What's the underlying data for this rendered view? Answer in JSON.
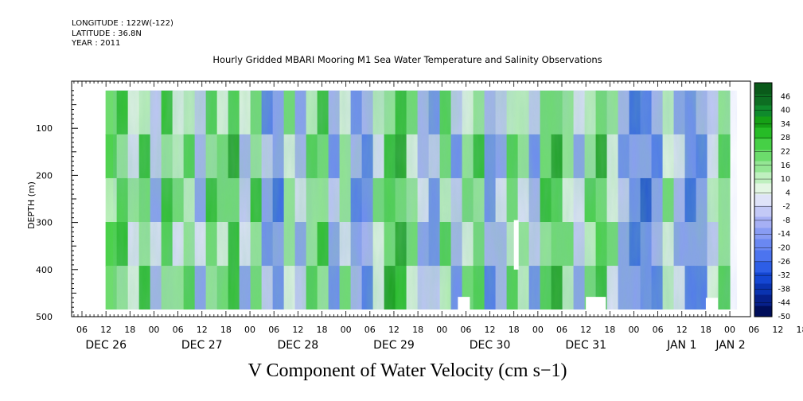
{
  "meta": {
    "longitude": "LONGITUDE : 122W(-122)",
    "latitude": "LATITUDE : 36.8N",
    "year": "YEAR : 2011"
  },
  "title": "Hourly Gridded MBARI Mooring M1 Sea Water Temperature and Salinity Observations",
  "bottom_title": "V Component of Water Velocity (cm s−1)",
  "chart_data": {
    "type": "heatmap",
    "title": "Hourly Gridded MBARI Mooring M1 Sea Water Temperature and Salinity Observations",
    "xlabel": "",
    "ylabel": "DEPTH (m)",
    "variable": "V Component of Water Velocity (cm s−1)",
    "ylim": [
      500,
      0
    ],
    "y_ticks": [
      100,
      200,
      300,
      400,
      500
    ],
    "x_hour_ticks": [
      "06",
      "12",
      "18",
      "00",
      "06",
      "12",
      "18",
      "00",
      "06",
      "12",
      "18",
      "00",
      "06",
      "12",
      "18",
      "00",
      "06",
      "12",
      "18",
      "00",
      "06",
      "12",
      "18",
      "00",
      "06",
      "12",
      "18",
      "00",
      "06",
      "12",
      "18",
      "00"
    ],
    "x_day_labels": [
      "DEC 26",
      "DEC 27",
      "DEC 28",
      "DEC 29",
      "DEC 30",
      "DEC 31",
      "JAN  1",
      "JAN  2"
    ],
    "colorbar_levels": [
      46,
      40,
      34,
      28,
      22,
      16,
      10,
      4,
      -2,
      -8,
      -14,
      -20,
      -26,
      -32,
      -38,
      -44,
      -50
    ],
    "colorbar_range": [
      -50,
      52
    ],
    "colorbar_colors": [
      "#000e5a",
      "#06208a",
      "#0a33b0",
      "#1446d2",
      "#2d5ee6",
      "#4c74ef",
      "#6a88f2",
      "#889cf3",
      "#a6b0f4",
      "#c3c9f6",
      "#dfe3f8",
      "#e3f6e3",
      "#bff0bf",
      "#94e694",
      "#6cdc6c",
      "#46d046",
      "#26bc26",
      "#16a016",
      "#0f8a2c",
      "#0d6e22",
      "#0a5a1a"
    ],
    "data_region": {
      "time_start": "DEC 26 12",
      "time_end": "JAN 2 00",
      "depth_min": 20,
      "depth_max": 485
    },
    "columns": [
      {
        "t": 0,
        "v": 20
      },
      {
        "t": 1,
        "v": 25
      },
      {
        "t": 2,
        "v": 8
      },
      {
        "t": 3,
        "v": 22
      },
      {
        "t": 4,
        "v": -6
      },
      {
        "t": 5,
        "v": 26
      },
      {
        "t": 6,
        "v": 12
      },
      {
        "t": 7,
        "v": 18
      },
      {
        "t": 8,
        "v": -10
      },
      {
        "t": 9,
        "v": 24
      },
      {
        "t": 10,
        "v": 16
      },
      {
        "t": 11,
        "v": 28
      },
      {
        "t": 12,
        "v": -4
      },
      {
        "t": 13,
        "v": 22
      },
      {
        "t": 14,
        "v": -14
      },
      {
        "t": 15,
        "v": -20
      },
      {
        "t": 16,
        "v": 14
      },
      {
        "t": 17,
        "v": -8
      },
      {
        "t": 18,
        "v": 20
      },
      {
        "t": 19,
        "v": 24
      },
      {
        "t": 20,
        "v": -12
      },
      {
        "t": 21,
        "v": 12
      },
      {
        "t": 22,
        "v": -16
      },
      {
        "t": 23,
        "v": -18
      },
      {
        "t": 24,
        "v": 10
      },
      {
        "t": 25,
        "v": 26
      },
      {
        "t": 26,
        "v": 30
      },
      {
        "t": 27,
        "v": 14
      },
      {
        "t": 28,
        "v": -6
      },
      {
        "t": 29,
        "v": -14
      },
      {
        "t": 30,
        "v": 18
      },
      {
        "t": 31,
        "v": -10
      },
      {
        "t": 32,
        "v": 16
      },
      {
        "t": 33,
        "v": 22
      },
      {
        "t": 34,
        "v": -18
      },
      {
        "t": 35,
        "v": -8
      },
      {
        "t": 36,
        "v": 20
      },
      {
        "t": 37,
        "v": 10
      },
      {
        "t": 38,
        "v": -12
      },
      {
        "t": 39,
        "v": 24
      },
      {
        "t": 40,
        "v": 28
      },
      {
        "t": 41,
        "v": 12
      },
      {
        "t": 42,
        "v": -6
      },
      {
        "t": 43,
        "v": 18
      },
      {
        "t": 44,
        "v": 26
      },
      {
        "t": 45,
        "v": 10
      },
      {
        "t": 46,
        "v": -10
      },
      {
        "t": 47,
        "v": -20
      },
      {
        "t": 48,
        "v": -24
      },
      {
        "t": 49,
        "v": -16
      },
      {
        "t": 50,
        "v": 14
      },
      {
        "t": 51,
        "v": -8
      },
      {
        "t": 52,
        "v": -22
      },
      {
        "t": 53,
        "v": -18
      },
      {
        "t": 54,
        "v": 4
      },
      {
        "t": 55,
        "v": 20
      }
    ],
    "missing_regions": [
      {
        "t_start": "DEC 30 18",
        "t_end": "DEC 30 19",
        "depth_min": 295,
        "depth_max": 400
      },
      {
        "t_start": "DEC 30 04",
        "t_end": "DEC 30 07",
        "depth_min": 458,
        "depth_max": 485
      },
      {
        "t_start": "DEC 31 12",
        "t_end": "DEC 31 17",
        "depth_min": 458,
        "depth_max": 485
      },
      {
        "t_start": "JAN 1 18",
        "t_end": "JAN 1 21",
        "depth_min": 460,
        "depth_max": 485
      }
    ]
  }
}
